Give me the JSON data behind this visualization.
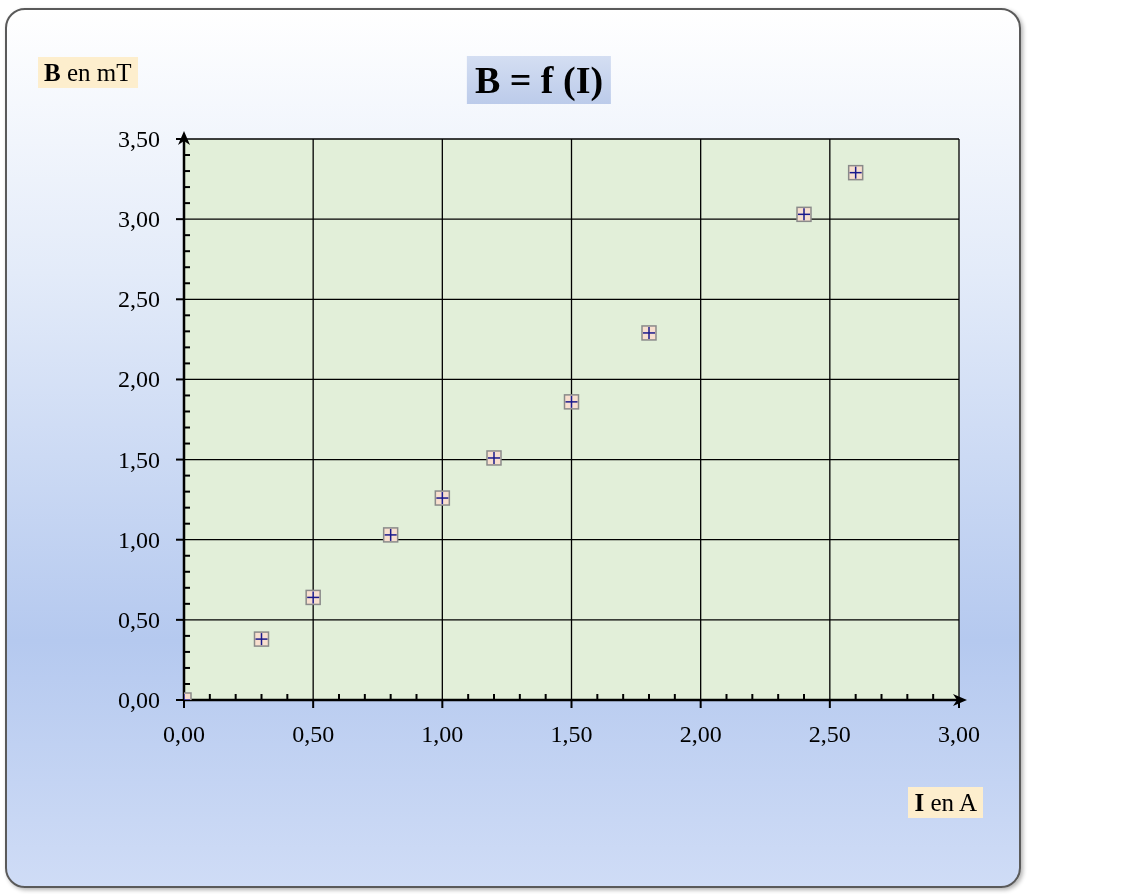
{
  "chart_data": {
    "type": "scatter",
    "title": "B = f (I)",
    "xlabel": "I en A",
    "ylabel": "B en mT",
    "x": [
      0,
      0.3,
      0.5,
      0.8,
      1.0,
      1.2,
      1.5,
      1.8,
      2.4,
      2.6
    ],
    "values": [
      0,
      0.38,
      0.64,
      1.03,
      1.26,
      1.51,
      1.86,
      2.29,
      3.03,
      3.29
    ],
    "color": "#f8dfcf",
    "marker": "square",
    "grid": true,
    "xlim": [
      0,
      3
    ],
    "ylim": [
      0,
      3.5
    ],
    "xticks": [
      {
        "value": 0,
        "label": "0,00"
      },
      {
        "value": 0.1,
        "label": null
      },
      {
        "value": 0.2,
        "label": null
      },
      {
        "value": 0.3,
        "label": null
      },
      {
        "value": 0.4,
        "label": null
      },
      {
        "value": 0.5,
        "label": "0,50"
      },
      {
        "value": 0.6,
        "label": null
      },
      {
        "value": 0.7,
        "label": null
      },
      {
        "value": 0.8,
        "label": null
      },
      {
        "value": 0.9,
        "label": null
      },
      {
        "value": 1.0,
        "label": "1,00"
      },
      {
        "value": 1.1,
        "label": null
      },
      {
        "value": 1.2,
        "label": null
      },
      {
        "value": 1.3,
        "label": null
      },
      {
        "value": 1.4,
        "label": null
      },
      {
        "value": 1.5,
        "label": "1,50"
      },
      {
        "value": 1.6,
        "label": null
      },
      {
        "value": 1.7,
        "label": null
      },
      {
        "value": 1.8,
        "label": null
      },
      {
        "value": 1.9,
        "label": null
      },
      {
        "value": 2.0,
        "label": "2,00"
      },
      {
        "value": 2.1,
        "label": null
      },
      {
        "value": 2.2,
        "label": null
      },
      {
        "value": 2.3,
        "label": null
      },
      {
        "value": 2.4,
        "label": null
      },
      {
        "value": 2.5,
        "label": "2,50"
      },
      {
        "value": 2.6,
        "label": null
      },
      {
        "value": 2.7,
        "label": null
      },
      {
        "value": 2.8,
        "label": null
      },
      {
        "value": 2.9,
        "label": null
      },
      {
        "value": 3.0,
        "label": "3,00"
      }
    ],
    "yticks": [
      {
        "value": 0,
        "label": "0,00"
      },
      {
        "value": 0.1,
        "label": null
      },
      {
        "value": 0.2,
        "label": null
      },
      {
        "value": 0.3,
        "label": null
      },
      {
        "value": 0.4,
        "label": null
      },
      {
        "value": 0.5,
        "label": "0,50"
      },
      {
        "value": 0.6,
        "label": null
      },
      {
        "value": 0.7,
        "label": null
      },
      {
        "value": 0.8,
        "label": null
      },
      {
        "value": 0.9,
        "label": null
      },
      {
        "value": 1.0,
        "label": "1,00"
      },
      {
        "value": 1.1,
        "label": null
      },
      {
        "value": 1.2,
        "label": null
      },
      {
        "value": 1.3,
        "label": null
      },
      {
        "value": 1.4,
        "label": null
      },
      {
        "value": 1.5,
        "label": "1,50"
      },
      {
        "value": 1.6,
        "label": null
      },
      {
        "value": 1.7,
        "label": null
      },
      {
        "value": 1.8,
        "label": null
      },
      {
        "value": 1.9,
        "label": null
      },
      {
        "value": 2.0,
        "label": "2,00"
      },
      {
        "value": 2.1,
        "label": null
      },
      {
        "value": 2.2,
        "label": null
      },
      {
        "value": 2.3,
        "label": null
      },
      {
        "value": 2.4,
        "label": null
      },
      {
        "value": 2.5,
        "label": "2,50"
      },
      {
        "value": 2.6,
        "label": null
      },
      {
        "value": 2.7,
        "label": null
      },
      {
        "value": 2.8,
        "label": null
      },
      {
        "value": 2.9,
        "label": null
      },
      {
        "value": 3.0,
        "label": "3,00"
      },
      {
        "value": 3.1,
        "label": null
      },
      {
        "value": 3.2,
        "label": null
      },
      {
        "value": 3.3,
        "label": null
      },
      {
        "value": 3.4,
        "label": null
      },
      {
        "value": 3.5,
        "label": "3,50"
      }
    ]
  }
}
